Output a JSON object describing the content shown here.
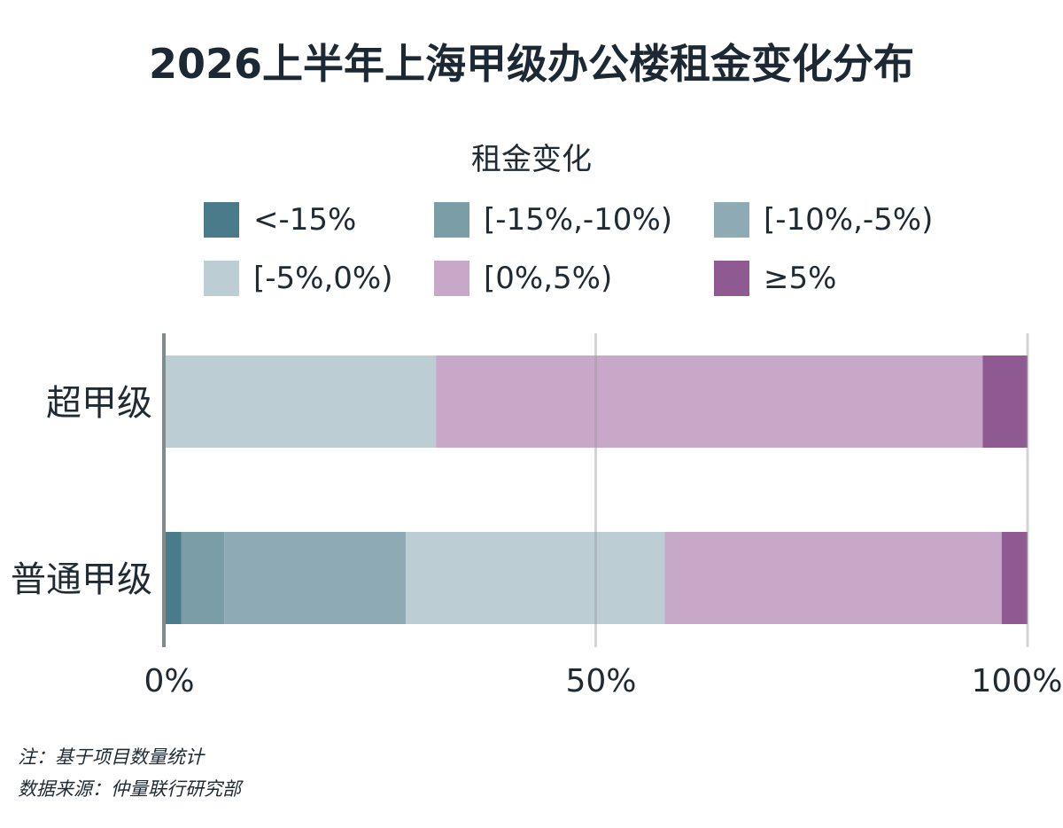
{
  "title": "2026上半年上海甲级办公楼租金变化分布",
  "chart_data": {
    "type": "bar",
    "orientation": "horizontal",
    "stacked": true,
    "legend_title": "租金变化",
    "categories": [
      "超甲级",
      "普通甲级"
    ],
    "series": [
      {
        "name": "<-15%",
        "color": "#4a7b8b",
        "values": [
          0,
          2
        ]
      },
      {
        "name": "[-15%,-10%)",
        "color": "#7a9da8",
        "values": [
          0,
          5
        ]
      },
      {
        "name": "[-10%,-5%)",
        "color": "#8eaab4",
        "values": [
          0,
          21
        ]
      },
      {
        "name": "[-5%,0%)",
        "color": "#bccdd3",
        "values": [
          31.5,
          30
        ]
      },
      {
        "name": "[0%,5%)",
        "color": "#c8a8c8",
        "values": [
          63.3,
          39
        ]
      },
      {
        "name": "≥5%",
        "color": "#8f5992",
        "values": [
          5.2,
          3
        ]
      }
    ],
    "xlim": [
      0,
      100
    ],
    "x_ticks": [
      "0%",
      "50%",
      "100%"
    ],
    "grid": true,
    "legend_position": "top"
  },
  "footnotes": {
    "note": "注：基于项目数量统计",
    "source": "数据来源：仲量联行研究部"
  }
}
